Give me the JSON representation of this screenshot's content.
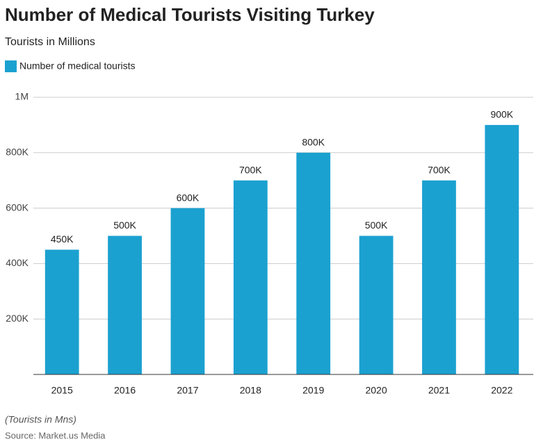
{
  "chart_data": {
    "type": "bar",
    "title": "Number of Medical Tourists Visiting Turkey",
    "subtitle": "Tourists in Millions",
    "categories": [
      "2015",
      "2016",
      "2017",
      "2018",
      "2019",
      "2020",
      "2021",
      "2022"
    ],
    "series": [
      {
        "name": "Number of medical tourists",
        "color": "#1ba1d0",
        "values": [
          450000,
          500000,
          600000,
          700000,
          800000,
          500000,
          700000,
          900000
        ],
        "value_labels": [
          "450K",
          "500K",
          "600K",
          "700K",
          "800K",
          "500K",
          "700K",
          "900K"
        ]
      }
    ],
    "ylim": [
      0,
      1000000
    ],
    "yticks": [
      {
        "value": 200000,
        "label": "200K"
      },
      {
        "value": 400000,
        "label": "400K"
      },
      {
        "value": 600000,
        "label": "600K"
      },
      {
        "value": 800000,
        "label": "800K"
      },
      {
        "value": 1000000,
        "label": "1M"
      }
    ],
    "grid": true,
    "note": "(Tourists in Mns)",
    "source": "Source: Market.us Media"
  }
}
